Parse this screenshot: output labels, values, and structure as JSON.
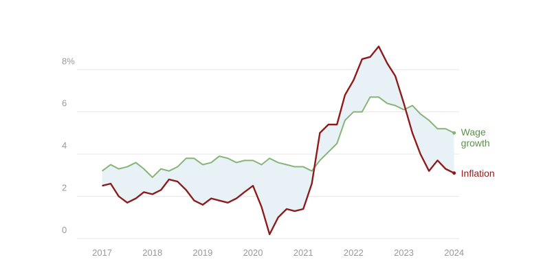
{
  "chart_data": {
    "type": "line",
    "x": [
      2017,
      2017.17,
      2017.33,
      2017.5,
      2017.67,
      2017.83,
      2018,
      2018.17,
      2018.33,
      2018.5,
      2018.67,
      2018.83,
      2019,
      2019.17,
      2019.33,
      2019.5,
      2019.67,
      2019.83,
      2020,
      2020.17,
      2020.33,
      2020.5,
      2020.67,
      2020.83,
      2021,
      2021.17,
      2021.33,
      2021.5,
      2021.67,
      2021.83,
      2022,
      2022.17,
      2022.33,
      2022.5,
      2022.67,
      2022.83,
      2023,
      2023.17,
      2023.33,
      2023.5,
      2023.67,
      2023.83,
      2024
    ],
    "series": [
      {
        "name": "Wage growth",
        "color": "#86b476",
        "label_color": "#5f8f4f",
        "values": [
          3.2,
          3.5,
          3.3,
          3.4,
          3.6,
          3.3,
          2.9,
          3.3,
          3.2,
          3.4,
          3.8,
          3.8,
          3.5,
          3.6,
          3.9,
          3.8,
          3.6,
          3.7,
          3.7,
          3.5,
          3.8,
          3.6,
          3.5,
          3.4,
          3.4,
          3.2,
          3.7,
          4.1,
          4.5,
          5.6,
          6.0,
          6.0,
          6.7,
          6.7,
          6.4,
          6.3,
          6.1,
          6.3,
          5.9,
          5.6,
          5.2,
          5.2,
          5.0
        ]
      },
      {
        "name": "Inflation",
        "color": "#8e1b1b",
        "label_color": "#8e1b1b",
        "values": [
          2.5,
          2.6,
          2.0,
          1.7,
          1.9,
          2.2,
          2.1,
          2.3,
          2.8,
          2.7,
          2.3,
          1.8,
          1.6,
          1.9,
          1.8,
          1.7,
          1.9,
          2.2,
          2.5,
          1.5,
          0.2,
          1.0,
          1.4,
          1.3,
          1.4,
          2.6,
          5.0,
          5.4,
          5.4,
          6.8,
          7.5,
          8.5,
          8.6,
          9.1,
          8.3,
          7.7,
          6.4,
          5.0,
          4.0,
          3.2,
          3.7,
          3.3,
          3.1
        ]
      }
    ],
    "fill_between": "#e8f1f6",
    "xlim": [
      2016.5,
      2024.1
    ],
    "xticks": [
      2017,
      2018,
      2019,
      2020,
      2021,
      2022,
      2023,
      2024
    ],
    "ylim": [
      0,
      9.2
    ],
    "yticks": [
      0,
      2,
      4,
      6,
      {
        "value": 8,
        "label": "8%"
      }
    ],
    "grid": true
  }
}
